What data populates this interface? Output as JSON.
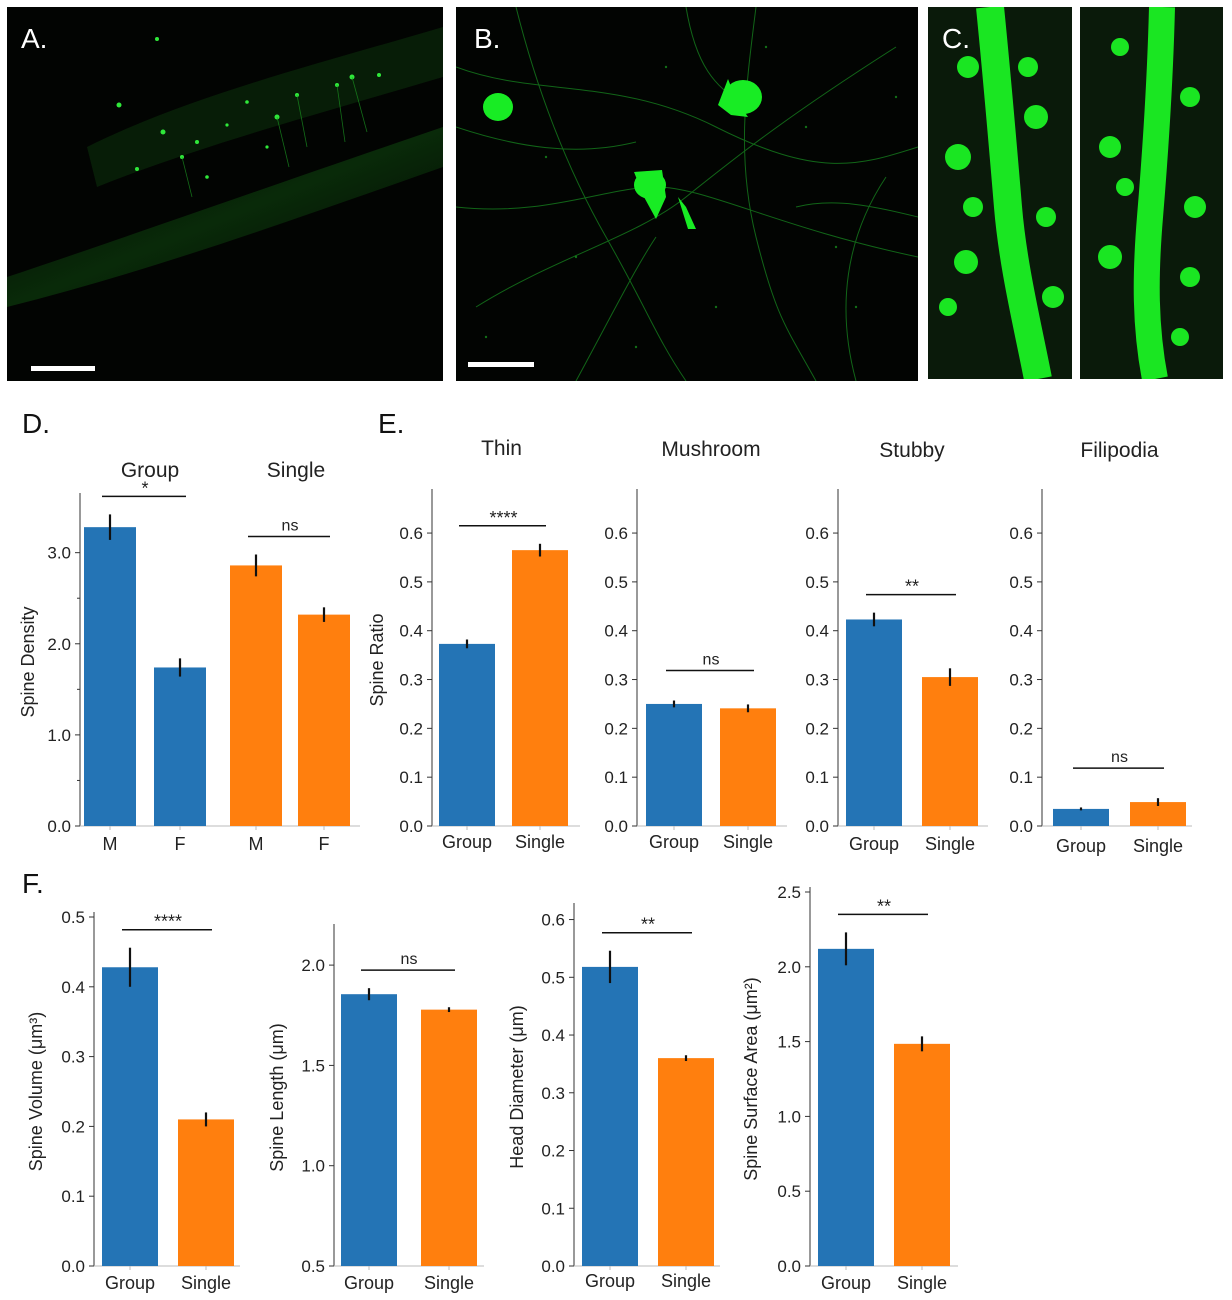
{
  "panels": {
    "A": {
      "letter": "A."
    },
    "B": {
      "letter": "B."
    },
    "C": {
      "letter": "C."
    },
    "D": {
      "letter": "D."
    },
    "E": {
      "letter": "E."
    },
    "F": {
      "letter": "F."
    }
  },
  "colors": {
    "group": "#2474b5",
    "single": "#ff7f0e",
    "cell": "#12e81a"
  },
  "chart_data": [
    {
      "id": "D",
      "type": "bar",
      "categories": [
        "M",
        "F",
        "M",
        "F"
      ],
      "group_labels": [
        "Group",
        "Single"
      ],
      "values": [
        3.28,
        1.74,
        2.86,
        2.32
      ],
      "errors": [
        0.14,
        0.1,
        0.12,
        0.08
      ],
      "bar_colors": [
        "group",
        "group",
        "single",
        "single"
      ],
      "ylabel": "Spine Density",
      "ylim": [
        0,
        3.6
      ],
      "yticks": [
        0.0,
        1.0,
        2.0,
        3.0
      ],
      "ytick_labels": [
        "0.0",
        "1.0",
        "2.0",
        "3.0"
      ],
      "significance": [
        {
          "from": 0,
          "to": 1,
          "label": "*"
        },
        {
          "from": 2,
          "to": 3,
          "label": "ns"
        }
      ]
    },
    {
      "id": "E1",
      "type": "bar",
      "title": "Thin",
      "categories": [
        "Group",
        "Single"
      ],
      "values": [
        0.373,
        0.565
      ],
      "errors": [
        0.009,
        0.013
      ],
      "bar_colors": [
        "group",
        "single"
      ],
      "ylabel": "Spine Ratio",
      "ylim": [
        0,
        0.68
      ],
      "yticks": [
        0.0,
        0.1,
        0.2,
        0.3,
        0.4,
        0.5,
        0.6
      ],
      "ytick_labels": [
        "0.0",
        "0.1",
        "0.2",
        "0.3",
        "0.4",
        "0.5",
        "0.6"
      ],
      "significance": [
        {
          "from": 0,
          "to": 1,
          "label": "****"
        }
      ]
    },
    {
      "id": "E2",
      "type": "bar",
      "title": "Mushroom",
      "categories": [
        "Group",
        "Single"
      ],
      "values": [
        0.25,
        0.241
      ],
      "errors": [
        0.007,
        0.008
      ],
      "bar_colors": [
        "group",
        "single"
      ],
      "ylim": [
        0,
        0.68
      ],
      "yticks": [
        0.0,
        0.1,
        0.2,
        0.3,
        0.4,
        0.5,
        0.6
      ],
      "ytick_labels": [
        "0.0",
        "0.1",
        "0.2",
        "0.3",
        "0.4",
        "0.5",
        "0.6"
      ],
      "significance": [
        {
          "from": 0,
          "to": 1,
          "label": "ns"
        }
      ]
    },
    {
      "id": "E3",
      "type": "bar",
      "title": "Stubby",
      "categories": [
        "Group",
        "Single"
      ],
      "values": [
        0.423,
        0.305
      ],
      "errors": [
        0.014,
        0.018
      ],
      "bar_colors": [
        "group",
        "single"
      ],
      "ylim": [
        0,
        0.68
      ],
      "yticks": [
        0.0,
        0.1,
        0.2,
        0.3,
        0.4,
        0.5,
        0.6
      ],
      "ytick_labels": [
        "0.0",
        "0.1",
        "0.2",
        "0.3",
        "0.4",
        "0.5",
        "0.6"
      ],
      "significance": [
        {
          "from": 0,
          "to": 1,
          "label": "**"
        }
      ]
    },
    {
      "id": "E4",
      "type": "bar",
      "title": "Filipodia",
      "categories": [
        "Group",
        "Single"
      ],
      "values": [
        0.035,
        0.049
      ],
      "errors": [
        0.003,
        0.008
      ],
      "bar_colors": [
        "group",
        "single"
      ],
      "ylim": [
        0,
        0.68
      ],
      "yticks": [
        0.0,
        0.1,
        0.2,
        0.3,
        0.4,
        0.5,
        0.6
      ],
      "ytick_labels": [
        "0.0",
        "0.1",
        "0.2",
        "0.3",
        "0.4",
        "0.5",
        "0.6"
      ],
      "significance": [
        {
          "from": 0,
          "to": 1,
          "label": "ns"
        }
      ]
    },
    {
      "id": "F1",
      "type": "bar",
      "categories": [
        "Group",
        "Single"
      ],
      "values": [
        0.428,
        0.21
      ],
      "errors": [
        0.028,
        0.01
      ],
      "bar_colors": [
        "group",
        "single"
      ],
      "ylabel": "Spine Volume (μm³)",
      "ylim": [
        0,
        0.5
      ],
      "yticks": [
        0.0,
        0.1,
        0.2,
        0.3,
        0.4,
        0.5
      ],
      "ytick_labels": [
        "0.0",
        "0.1",
        "0.2",
        "0.3",
        "0.4",
        "0.5"
      ],
      "significance": [
        {
          "from": 0,
          "to": 1,
          "label": "****"
        }
      ]
    },
    {
      "id": "F2",
      "type": "bar",
      "categories": [
        "Group",
        "Single"
      ],
      "values": [
        1.855,
        1.778
      ],
      "errors": [
        0.03,
        0.012
      ],
      "bar_colors": [
        "group",
        "single"
      ],
      "ylabel": "Spine Length (μm)",
      "ylim": [
        0.5,
        2.18
      ],
      "yticks": [
        0.5,
        1.0,
        1.5,
        2.0
      ],
      "ytick_labels": [
        "0.5",
        "1.0",
        "1.5",
        "2.0"
      ],
      "significance": [
        {
          "from": 0,
          "to": 1,
          "label": "ns"
        }
      ]
    },
    {
      "id": "F3",
      "type": "bar",
      "categories": [
        "Group",
        "Single"
      ],
      "values": [
        0.518,
        0.36
      ],
      "errors": [
        0.028,
        0.005
      ],
      "bar_colors": [
        "group",
        "single"
      ],
      "ylabel": "Head Diameter (μm)",
      "ylim": [
        0,
        0.62
      ],
      "yticks": [
        0.0,
        0.1,
        0.2,
        0.3,
        0.4,
        0.5,
        0.6
      ],
      "ytick_labels": [
        "0.0",
        "0.1",
        "0.2",
        "0.3",
        "0.4",
        "0.5",
        "0.6"
      ],
      "significance": [
        {
          "from": 0,
          "to": 1,
          "label": "**"
        }
      ]
    },
    {
      "id": "F4",
      "type": "bar",
      "categories": [
        "Group",
        "Single"
      ],
      "values": [
        2.12,
        1.485
      ],
      "errors": [
        0.11,
        0.05
      ],
      "bar_colors": [
        "group",
        "single"
      ],
      "ylabel": "Spine Surface Area (μm²)",
      "ylim": [
        0,
        2.5
      ],
      "yticks": [
        0.0,
        0.5,
        1.0,
        1.5,
        2.0,
        2.5
      ],
      "ytick_labels": [
        "0.0",
        "0.5",
        "1.0",
        "1.5",
        "2.0",
        "2.5"
      ],
      "significance": [
        {
          "from": 0,
          "to": 1,
          "label": "**"
        }
      ]
    }
  ]
}
